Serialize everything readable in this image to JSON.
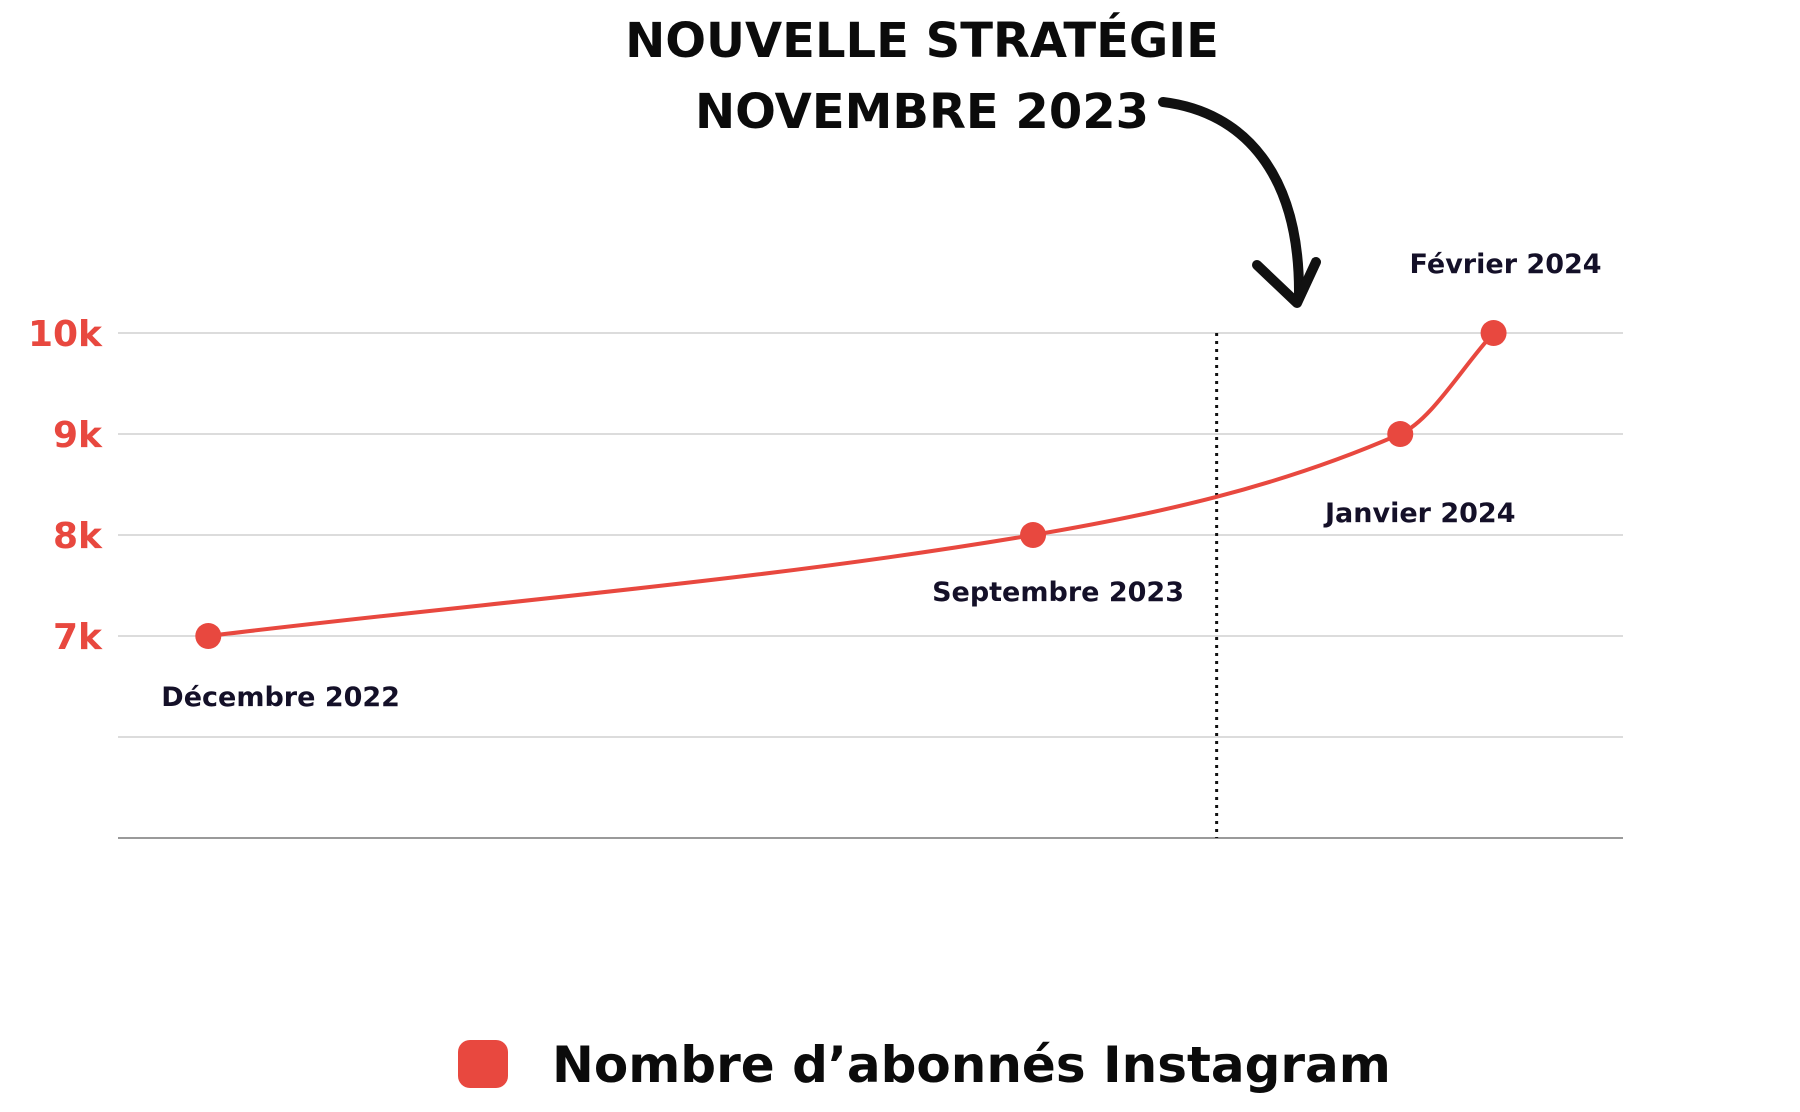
{
  "chart_data": {
    "type": "line",
    "title": "",
    "xlabel": "",
    "ylabel": "",
    "ylim": [
      5000,
      10000
    ],
    "grid": true,
    "yticks": [
      {
        "value": 10000,
        "label": "10k"
      },
      {
        "value": 9000,
        "label": "9k"
      },
      {
        "value": 8000,
        "label": "8k"
      },
      {
        "value": 7000,
        "label": "7k"
      }
    ],
    "gridlines": [
      10000,
      9000,
      8000,
      7000,
      6000
    ],
    "xlim": [
      "2022-11-01",
      "2024-03-15"
    ],
    "series": [
      {
        "name": "Nombre d’abonnés Instagram",
        "color": "#e8483f",
        "points": [
          {
            "x": "2022-12",
            "label": "Décembre 2022",
            "value": 7000
          },
          {
            "x": "2023-09",
            "label": "Septembre 2023",
            "value": 8000
          },
          {
            "x": "2024-01",
            "label": "Janvier 2024",
            "value": 9000
          },
          {
            "x": "2024-02",
            "label": "Février 2024",
            "value": 10000
          }
        ]
      }
    ],
    "annotation": {
      "line1": "NOUVELLE STRATÉGIE",
      "line2": "NOVEMBRE 2023",
      "x": "2023-11",
      "line_style": "dotted"
    },
    "legend": {
      "placement": "bottom-center",
      "label": "Nombre d’abonnés Instagram"
    }
  }
}
